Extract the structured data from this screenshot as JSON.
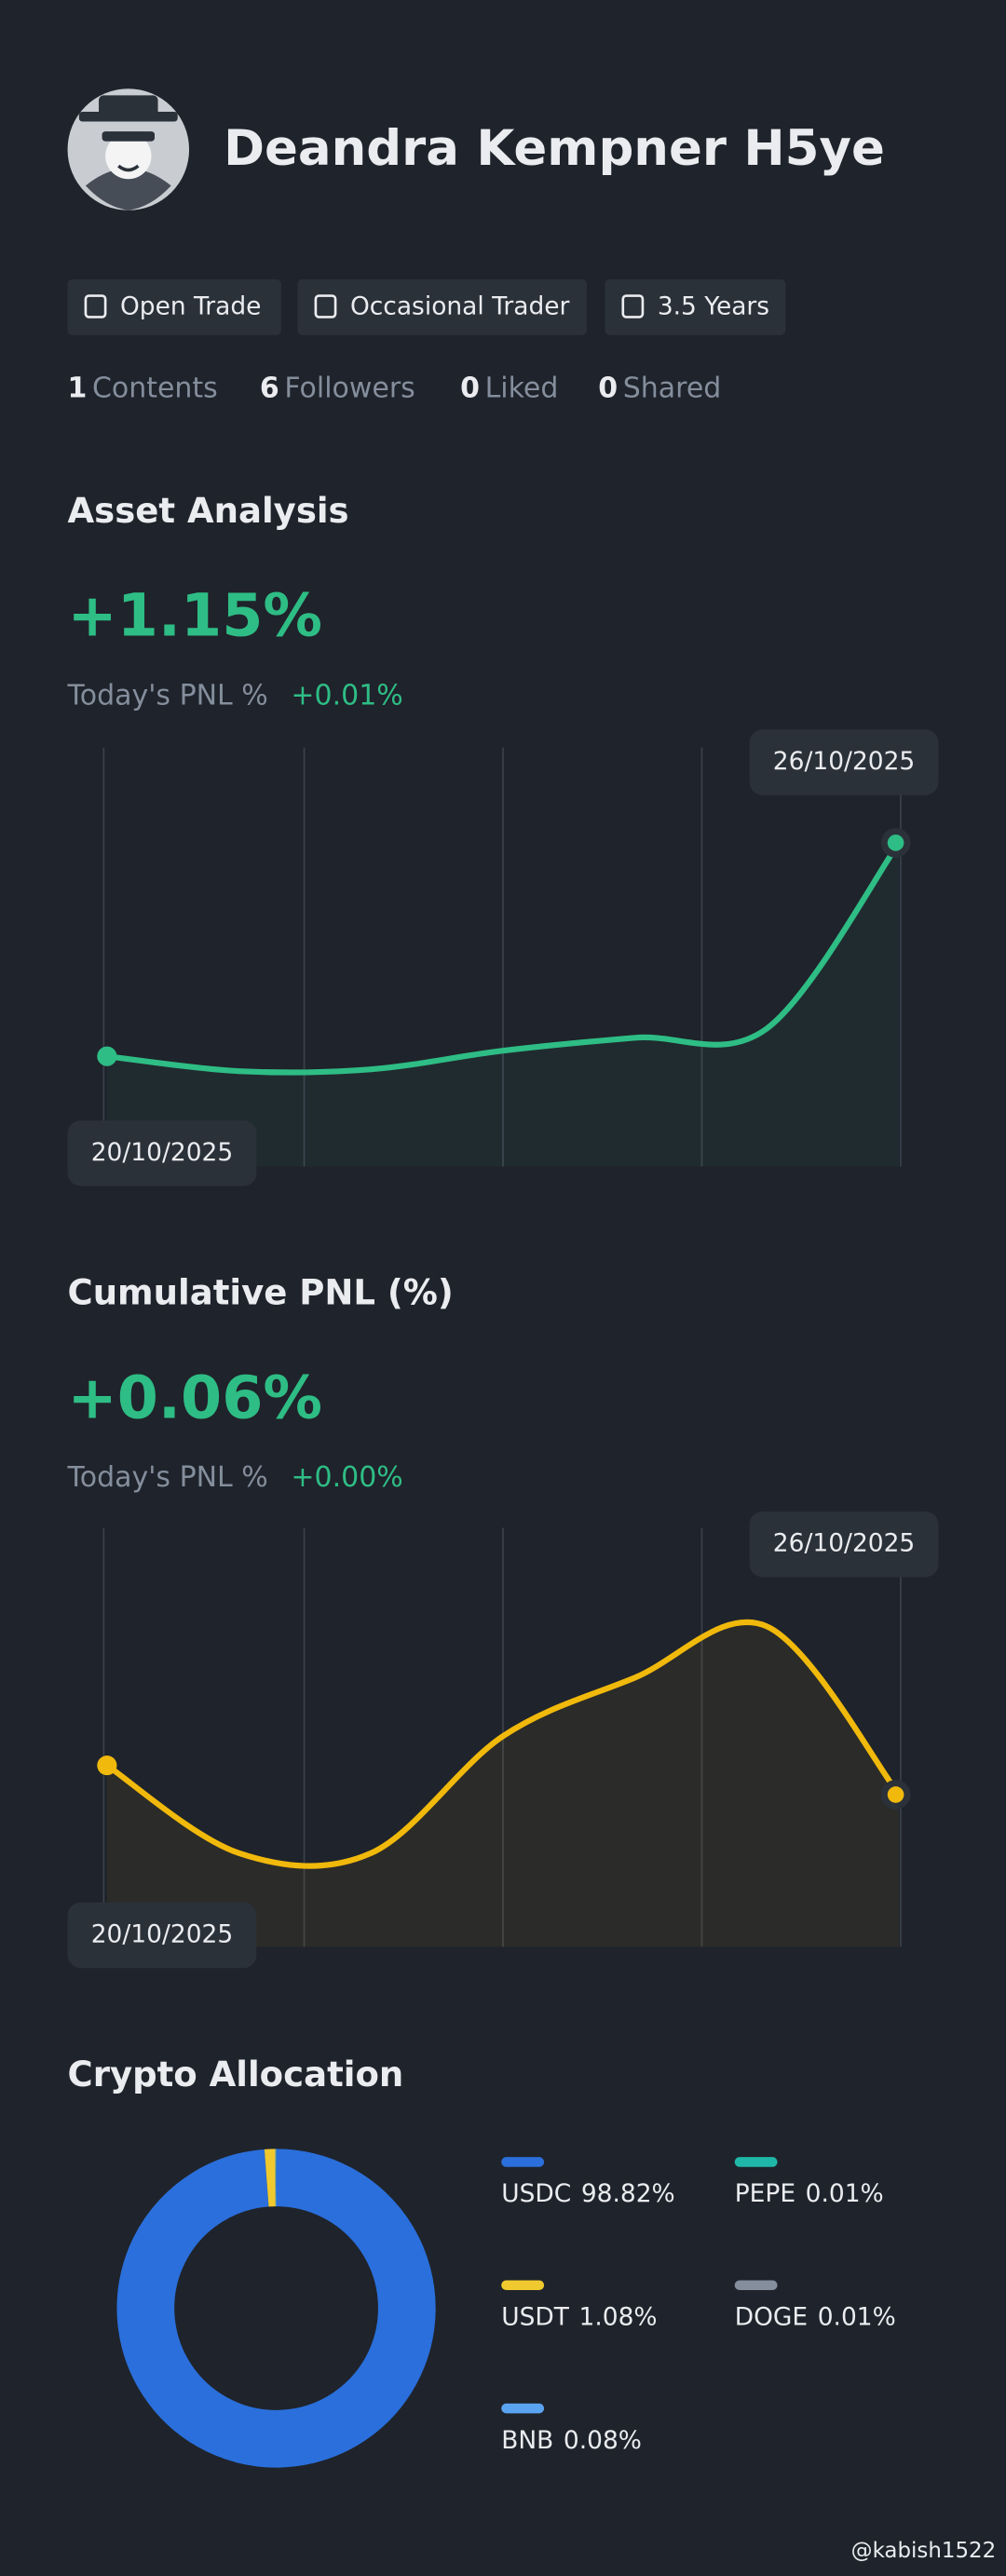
{
  "profile": {
    "name": "Deandra Kempner H5ye",
    "tags": [
      "Open Trade",
      "Occasional Trader",
      "3.5 Years"
    ],
    "stats": [
      {
        "count": 1,
        "label": "Contents"
      },
      {
        "count": 6,
        "label": "Followers"
      },
      {
        "count": 0,
        "label": "Liked"
      },
      {
        "count": 0,
        "label": "Shared"
      }
    ]
  },
  "chart_data": [
    {
      "type": "line",
      "title": "Asset Analysis",
      "headline": "+1.15%",
      "today_label": "Today's PNL %",
      "today_value": "+0.01%",
      "categories": [
        "20/10/2025",
        null,
        null,
        null,
        null,
        null,
        "26/10/2025"
      ],
      "series": [
        {
          "color": "#2ebd85",
          "values": [
            0,
            -0.08,
            -0.07,
            0.03,
            0.1,
            0.15,
            1.15
          ]
        }
      ]
    },
    {
      "type": "line",
      "title": "Cumulative PNL (%)",
      "headline": "+0.06%",
      "today_label": "Today's PNL %",
      "today_value": "+0.00%",
      "categories": [
        "20/10/2025",
        null,
        null,
        null,
        null,
        null,
        "26/10/2025"
      ],
      "series": [
        {
          "color": "#f0b90b",
          "values": [
            0.1,
            -0.02,
            -0.02,
            0.14,
            0.22,
            0.29,
            0.06
          ]
        }
      ]
    },
    {
      "type": "donut",
      "title": "Crypto Allocation",
      "categories": [
        "USDC",
        "USDT",
        "BNB",
        "PEPE",
        "DOGE"
      ],
      "values": [
        98.82,
        1.08,
        0.08,
        0.01,
        0.01
      ],
      "value_labels": [
        "98.82%",
        "1.08%",
        "0.08%",
        "0.01%",
        "0.01%"
      ],
      "colors": [
        "#2a6fdb",
        "#f0c92f",
        "#5aa3f0",
        "#1fb8a8",
        "#848e9c"
      ]
    }
  ],
  "watermark": "@kabish1522"
}
